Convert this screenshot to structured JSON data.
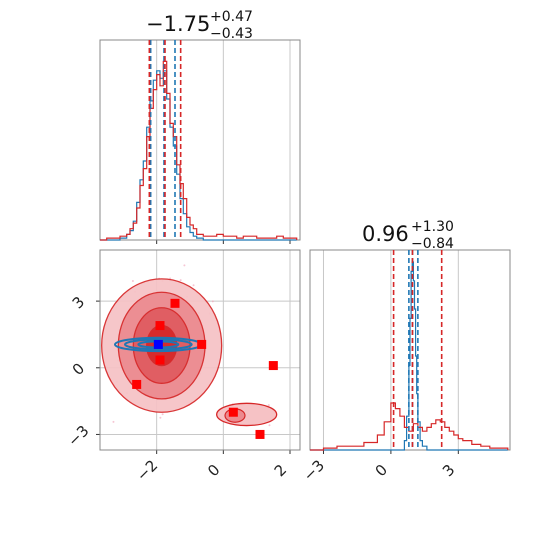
{
  "chart_data": [
    {
      "type": "histogram",
      "panel": "top-left marginal",
      "title": {
        "value": "−1.75",
        "plus": "+0.47",
        "minus": "−0.43"
      },
      "xlim": [
        -3.7,
        2.3
      ],
      "grid": true,
      "x_ticks": [
        -2,
        0,
        2
      ],
      "colors": {
        "red": "#d62728",
        "blue": "#1f77b4"
      },
      "red_quantiles": [
        -2.22,
        -1.75,
        -1.28
      ],
      "blue_quantiles": [
        -2.18,
        -1.78,
        -1.45
      ],
      "series": [
        {
          "color": "red",
          "x": [
            -3.7,
            -3.5,
            -3.3,
            -3.1,
            -2.9,
            -2.8,
            -2.7,
            -2.6,
            -2.5,
            -2.4,
            -2.3,
            -2.2,
            -2.1,
            -2.0,
            -1.9,
            -1.8,
            -1.7,
            -1.6,
            -1.5,
            -1.4,
            -1.3,
            -1.2,
            -1.1,
            -1.0,
            -0.9,
            -0.8,
            -0.6,
            -0.4,
            -0.2,
            0.0,
            0.2,
            0.4,
            0.6,
            0.8,
            1.0,
            1.2,
            1.4,
            1.6,
            1.8,
            2.0,
            2.2
          ],
          "values": [
            0,
            0.01,
            0.01,
            0.02,
            0.03,
            0.06,
            0.09,
            0.17,
            0.29,
            0.38,
            0.55,
            0.7,
            0.8,
            0.88,
            0.82,
            0.95,
            0.78,
            0.62,
            0.55,
            0.4,
            0.3,
            0.22,
            0.12,
            0.08,
            0.06,
            0.03,
            0.02,
            0.02,
            0.03,
            0.02,
            0.02,
            0.01,
            0.02,
            0.02,
            0.01,
            0.01,
            0.01,
            0.02,
            0.01,
            0.01,
            0
          ]
        },
        {
          "color": "blue",
          "x": [
            -3.7,
            -3.5,
            -3.3,
            -3.1,
            -2.9,
            -2.8,
            -2.7,
            -2.6,
            -2.5,
            -2.4,
            -2.3,
            -2.2,
            -2.1,
            -2.0,
            -1.9,
            -1.8,
            -1.7,
            -1.6,
            -1.5,
            -1.4,
            -1.3,
            -1.2,
            -1.1,
            -1.0,
            -0.9,
            -0.8,
            -0.6,
            -0.4,
            -0.2,
            0.0,
            0.2,
            0.4,
            0.6,
            0.8,
            1.0,
            1.2,
            1.4,
            1.6,
            1.8,
            2.0,
            2.2
          ],
          "values": [
            0,
            0,
            0,
            0.01,
            0.03,
            0.05,
            0.1,
            0.2,
            0.32,
            0.42,
            0.6,
            0.74,
            0.85,
            0.9,
            0.86,
            0.9,
            0.75,
            0.6,
            0.5,
            0.35,
            0.22,
            0.14,
            0.07,
            0.04,
            0.02,
            0.01,
            0,
            0,
            0,
            0,
            0,
            0,
            0,
            0,
            0,
            0,
            0,
            0,
            0,
            0,
            0
          ]
        }
      ]
    },
    {
      "type": "scatter",
      "panel": "bottom-left 2D contours",
      "xlim": [
        -3.7,
        2.3
      ],
      "ylim": [
        -3.7,
        5.3
      ],
      "grid": true,
      "x_ticks": [
        -2,
        0,
        2
      ],
      "y_ticks": [
        -3,
        0,
        3
      ],
      "red_squares": [
        {
          "x": -1.45,
          "y": 2.9
        },
        {
          "x": -1.9,
          "y": 1.9
        },
        {
          "x": -0.65,
          "y": 1.05
        },
        {
          "x": -1.9,
          "y": 0.35
        },
        {
          "x": -2.6,
          "y": -0.75
        },
        {
          "x": 1.5,
          "y": 0.1
        },
        {
          "x": 0.3,
          "y": -2.0
        },
        {
          "x": 1.1,
          "y": -3.0
        }
      ],
      "blue_square": {
        "x": -1.95,
        "y": 1.05
      }
    },
    {
      "type": "histogram",
      "panel": "bottom-right marginal",
      "title": {
        "value": "0.96",
        "plus": "+1.30",
        "minus": "−0.84"
      },
      "xlim": [
        -3.6,
        5.3
      ],
      "grid": true,
      "x_ticks": [
        -3,
        0,
        3
      ],
      "red_quantiles": [
        0.12,
        0.96,
        2.26
      ],
      "blue_quantiles": [
        0.8,
        0.96,
        1.2
      ],
      "series": [
        {
          "color": "red",
          "x": [
            -3.6,
            -3.0,
            -2.4,
            -1.8,
            -1.2,
            -0.6,
            -0.3,
            0.0,
            0.2,
            0.4,
            0.6,
            0.8,
            1.0,
            1.2,
            1.4,
            1.6,
            1.8,
            2.0,
            2.2,
            2.4,
            2.6,
            2.8,
            3.0,
            3.2,
            3.6,
            4.0,
            4.4,
            4.8,
            5.2
          ],
          "values": [
            0,
            0.01,
            0.02,
            0.02,
            0.04,
            0.08,
            0.15,
            0.25,
            0.22,
            0.18,
            0.12,
            0.1,
            0.14,
            0.12,
            0.1,
            0.12,
            0.14,
            0.16,
            0.15,
            0.12,
            0.1,
            0.08,
            0.06,
            0.05,
            0.03,
            0.02,
            0.01,
            0.01,
            0
          ]
        },
        {
          "color": "blue",
          "x": [
            -3.6,
            0.4,
            0.6,
            0.7,
            0.8,
            0.85,
            0.9,
            0.95,
            1.0,
            1.05,
            1.1,
            1.15,
            1.2,
            1.3,
            1.4,
            1.6,
            5.2
          ],
          "values": [
            0,
            0,
            0.05,
            0.18,
            0.45,
            0.7,
            0.95,
            1.0,
            0.9,
            0.75,
            0.5,
            0.3,
            0.15,
            0.05,
            0.02,
            0,
            0
          ]
        }
      ]
    }
  ]
}
